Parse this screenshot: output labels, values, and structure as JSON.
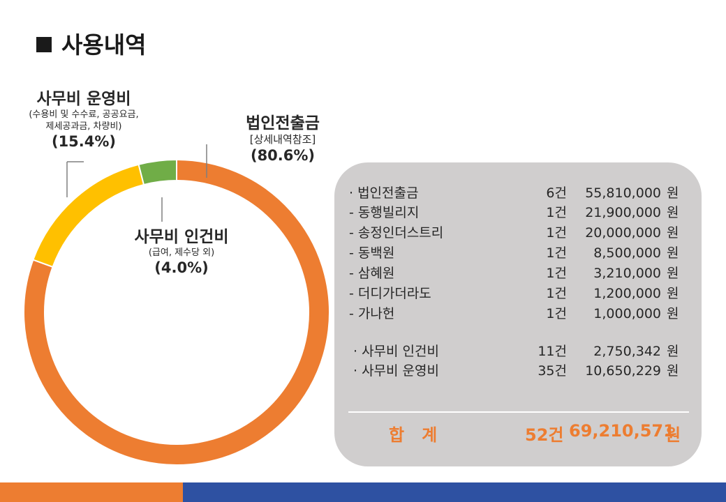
{
  "title": "사용내역",
  "chart_data": {
    "type": "pie",
    "style": "donut",
    "slices": [
      {
        "label": "법인전출금",
        "sub": "[상세내역참조]",
        "percent": 80.6,
        "percent_label": "(80.6%)",
        "color": "#ed7d31"
      },
      {
        "label": "사무비 운영비",
        "sub": "(수용비 및 수수료, 공공요금,",
        "sub2": "제세공과금, 차량비)",
        "percent": 15.4,
        "percent_label": "(15.4%)",
        "color": "#ffc000"
      },
      {
        "label": "사무비 인건비",
        "sub": "(급여, 제수당 외)",
        "percent": 4.0,
        "percent_label": "(4.0%)",
        "color": "#70ad47"
      }
    ]
  },
  "details": {
    "rows": [
      {
        "name": "· 법인전출금",
        "count": "6건",
        "amount": "55,810,000",
        "unit": "원"
      },
      {
        "name": "- 동행빌리지",
        "count": "1건",
        "amount": "21,900,000",
        "unit": "원"
      },
      {
        "name": "- 송정인더스트리",
        "count": "1건",
        "amount": "20,000,000",
        "unit": "원"
      },
      {
        "name": "- 동백원",
        "count": "1건",
        "amount": "8,500,000",
        "unit": "원"
      },
      {
        "name": "- 삼혜원",
        "count": "1건",
        "amount": "3,210,000",
        "unit": "원"
      },
      {
        "name": "- 더디가더라도",
        "count": "1건",
        "amount": "1,200,000",
        "unit": "원"
      },
      {
        "name": "- 가나헌",
        "count": "1건",
        "amount": "1,000,000",
        "unit": "원"
      },
      {
        "name": "· 사무비 인건비",
        "count": "11건",
        "amount": "2,750,342",
        "unit": "원"
      },
      {
        "name": "· 사무비 운영비",
        "count": "35건",
        "amount": "10,650,229",
        "unit": "원"
      }
    ],
    "total": {
      "label": "합   계",
      "count": "52건",
      "amount": "69,210,571",
      "unit": "원"
    }
  }
}
